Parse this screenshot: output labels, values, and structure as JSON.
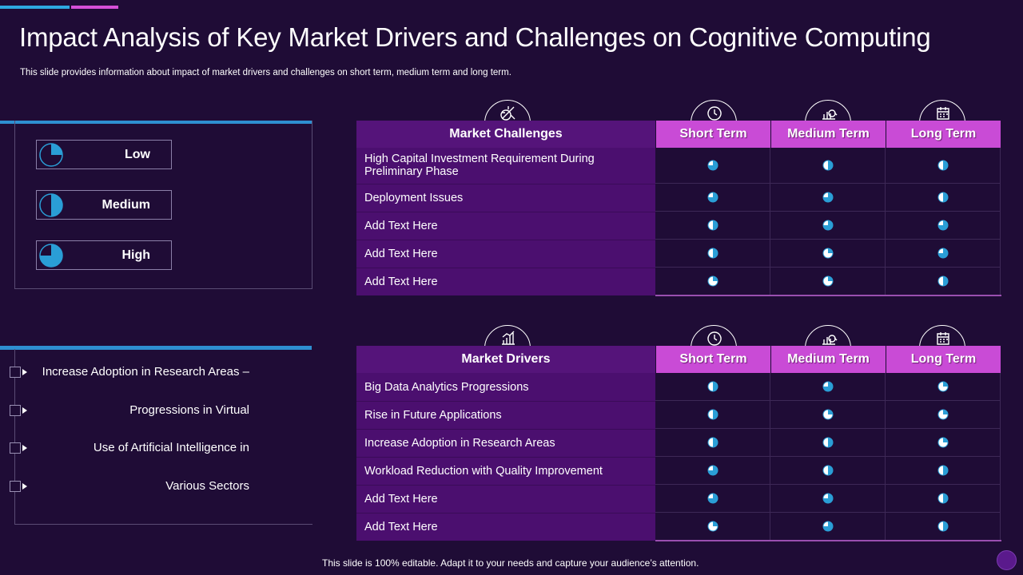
{
  "title": "Impact Analysis of Key Market Drivers and Challenges on Cognitive Computing",
  "subtitle": "This slide provides information about impact of market drivers and challenges on short term, medium term and long term.",
  "footer": "This slide is 100% editable. Adapt it to your needs and capture your audience’s attention.",
  "colors": {
    "background": "#1f0c36",
    "accent_blue": "#2ea8e0",
    "accent_pink": "#d64fd8",
    "header_purple": "#55147a",
    "header_pink": "#c94bd6",
    "pie_blue": "#2a9ed6"
  },
  "legend": [
    {
      "label": "Low",
      "level": 0.25
    },
    {
      "label": "Medium",
      "level": 0.5
    },
    {
      "label": "High",
      "level": 0.75
    }
  ],
  "bullets": [
    "Increase Adoption in Research Areas –",
    "Progressions in Virtual",
    "Use of Artificial Intelligence in",
    "Various Sectors"
  ],
  "challenges": {
    "header": "Market Challenges",
    "terms": [
      "Short Term",
      "Medium Term",
      "Long Term"
    ],
    "icons": [
      "target-analysis-icon",
      "clock-icon",
      "business-growth-icon",
      "calendar-icon"
    ],
    "rows": [
      {
        "label": "High Capital Investment Requirement During Preliminary Phase",
        "values": [
          "high",
          "medium",
          "medium"
        ]
      },
      {
        "label": "Deployment Issues",
        "values": [
          "high",
          "high",
          "medium"
        ]
      },
      {
        "label": "Add Text Here",
        "values": [
          "medium",
          "high",
          "high"
        ]
      },
      {
        "label": "Add Text Here",
        "values": [
          "medium",
          "low",
          "high"
        ]
      },
      {
        "label": "Add Text Here",
        "values": [
          "low",
          "low",
          "medium"
        ]
      }
    ]
  },
  "drivers": {
    "header": "Market Drivers",
    "terms": [
      "Short Term",
      "Medium Term",
      "Long Term"
    ],
    "icons": [
      "bar-chart-icon",
      "clock-icon",
      "business-growth-icon",
      "calendar-icon"
    ],
    "rows": [
      {
        "label": "Big Data Analytics Progressions",
        "values": [
          "medium",
          "high",
          "low"
        ]
      },
      {
        "label": "Rise in Future Applications",
        "values": [
          "medium",
          "low",
          "low"
        ]
      },
      {
        "label": "Increase Adoption in Research Areas",
        "values": [
          "medium",
          "medium",
          "low"
        ]
      },
      {
        "label": "Workload Reduction with Quality Improvement",
        "values": [
          "high",
          "medium",
          "medium"
        ]
      },
      {
        "label": "Add Text Here",
        "values": [
          "high",
          "high",
          "medium"
        ]
      },
      {
        "label": "Add Text Here",
        "values": [
          "low",
          "high",
          "medium"
        ]
      }
    ]
  }
}
